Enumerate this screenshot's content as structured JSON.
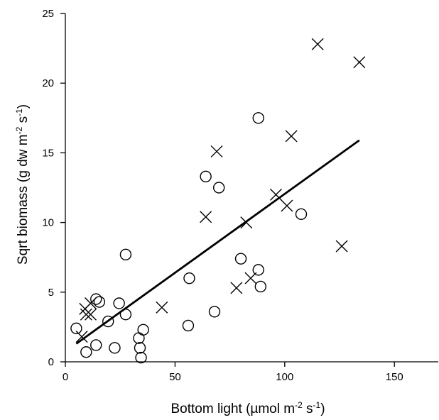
{
  "chart_data": {
    "type": "scatter",
    "title": "",
    "xlabel": "Bottom light (µmol m",
    "xlabel_sup1": "-2",
    "xlabel_mid": " s",
    "xlabel_sup2": "-1",
    "xlabel_end": ")",
    "ylabel": "Sqrt biomass (g dw m",
    "ylabel_sup1": "-2",
    "ylabel_mid": " s",
    "ylabel_sup2": "-1",
    "ylabel_end": ")",
    "xlim": [
      0,
      170
    ],
    "ylim": [
      0,
      25
    ],
    "xticks": [
      "0",
      "50",
      "100",
      "150"
    ],
    "yticks": [
      "0",
      "5",
      "10",
      "15",
      "20",
      "25"
    ],
    "grid": false,
    "series": [
      {
        "marker": "circle",
        "points": [
          [
            5,
            2.4
          ],
          [
            9.5,
            0.7
          ],
          [
            14,
            1.2
          ],
          [
            14,
            4.5
          ],
          [
            15.5,
            4.3
          ],
          [
            19.5,
            2.9
          ],
          [
            22.5,
            1.0
          ],
          [
            24.5,
            4.2
          ],
          [
            27.5,
            3.4
          ],
          [
            27.5,
            7.7
          ],
          [
            33.5,
            1.7
          ],
          [
            34,
            1.0
          ],
          [
            34.5,
            0.3
          ],
          [
            35.5,
            2.3
          ],
          [
            56,
            2.6
          ],
          [
            56.5,
            6.0
          ],
          [
            64,
            13.3
          ],
          [
            68,
            3.6
          ],
          [
            70,
            12.5
          ],
          [
            80,
            7.4
          ],
          [
            88,
            17.5
          ],
          [
            88,
            6.6
          ],
          [
            89,
            5.4
          ],
          [
            107.5,
            10.6
          ]
        ]
      },
      {
        "marker": "x",
        "points": [
          [
            7.5,
            1.8
          ],
          [
            9,
            3.8
          ],
          [
            9.5,
            3.4
          ],
          [
            11.5,
            3.4
          ],
          [
            11.5,
            4.2
          ],
          [
            44,
            3.9
          ],
          [
            64,
            10.4
          ],
          [
            69,
            15.1
          ],
          [
            78,
            5.3
          ],
          [
            82.5,
            10.0
          ],
          [
            84.5,
            6.0
          ],
          [
            96,
            12.0
          ],
          [
            101,
            11.2
          ],
          [
            103,
            16.2
          ],
          [
            115,
            22.8
          ],
          [
            126,
            8.3
          ],
          [
            134,
            21.5
          ]
        ]
      }
    ],
    "trendline": {
      "x": [
        5,
        134
      ],
      "y": [
        1.3,
        15.9
      ]
    },
    "colors": {
      "marks": "#000000",
      "background": "#ffffff"
    }
  }
}
